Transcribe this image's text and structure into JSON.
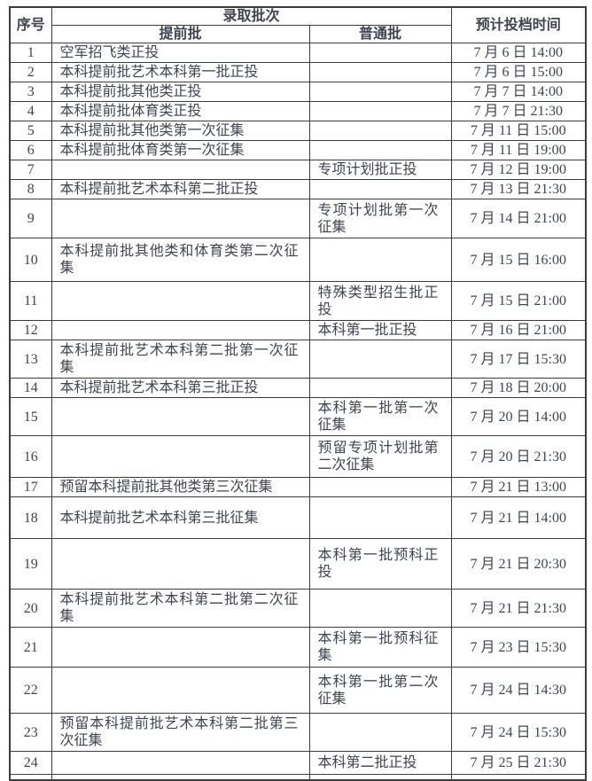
{
  "colors": {
    "text": "#3f4450",
    "border": "#3c3c3c",
    "background": "#ffffff"
  },
  "table": {
    "headers": {
      "seq": "序号",
      "batch_group": "录取批次",
      "early": "提前批",
      "general": "普通批",
      "time": "预计投档时间"
    },
    "rows": [
      {
        "seq": "1",
        "early": "空军招飞类正投",
        "general": "",
        "time": "7 月 6 日 14:00"
      },
      {
        "seq": "2",
        "early": "本科提前批艺术本科第一批正投",
        "general": "",
        "time": "7 月 6 日 15:00"
      },
      {
        "seq": "3",
        "early": "本科提前批其他类正投",
        "general": "",
        "time": "7 月 7 日 14:00"
      },
      {
        "seq": "4",
        "early": "本科提前批体育类正投",
        "general": "",
        "time": "7 月 7 日 21:30"
      },
      {
        "seq": "5",
        "early": "本科提前批其他类第一次征集",
        "general": "",
        "time": "7 月 11 日 15:00"
      },
      {
        "seq": "6",
        "early": "本科提前批体育类第一次征集",
        "general": "",
        "time": "7 月 11 日 19:00"
      },
      {
        "seq": "7",
        "early": "",
        "general": "专项计划批正投",
        "time": "7 月 12 日 19:00"
      },
      {
        "seq": "8",
        "early": "本科提前批艺术本科第二批正投",
        "general": "",
        "time": "7 月 13 日 21:30"
      },
      {
        "seq": "9",
        "early": "",
        "general": "专项计划批第一次征集",
        "time": "7 月 14 日 21:00"
      },
      {
        "seq": "10",
        "early": "本科提前批其他类和体育类第二次征集",
        "general": "",
        "time": "7 月 15 日 16:00"
      },
      {
        "seq": "11",
        "early": "",
        "general": "特殊类型招生批正投",
        "time": "7 月 15 日 21:00"
      },
      {
        "seq": "12",
        "early": "",
        "general": "本科第一批正投",
        "time": "7 月 16 日 21:00"
      },
      {
        "seq": "13",
        "early": "本科提前批艺术本科第二批第一次征集",
        "general": "",
        "time": "7 月 17 日 15:30"
      },
      {
        "seq": "14",
        "early": "本科提前批艺术本科第三批正投",
        "general": "",
        "time": "7 月 18 日 20:00"
      },
      {
        "seq": "15",
        "early": "",
        "general": "本科第一批第一次征集",
        "time": "7 月 20 日 14:00"
      },
      {
        "seq": "16",
        "early": "",
        "general": "预留专项计划批第二次征集",
        "time": "7 月 20 日 21:30"
      },
      {
        "seq": "17",
        "early": "预留本科提前批其他类第三次征集",
        "general": "",
        "time": "7 月 21 日 13:00"
      },
      {
        "seq": "18",
        "early": "本科提前批艺术本科第三批征集",
        "general": "",
        "time": "7 月 21 日 14:00"
      },
      {
        "seq": "19",
        "early": "",
        "general": "本科第一批预科正投",
        "time": "7 月 21 日 20:30"
      },
      {
        "seq": "20",
        "early": "本科提前批艺术本科第二批第二次征集",
        "general": "",
        "time": "7 月 21 日 21:30"
      },
      {
        "seq": "21",
        "early": "",
        "general": "本科第一批预科征集",
        "time": "7 月 23 日 15:30"
      },
      {
        "seq": "22",
        "early": "",
        "general": "本科第一批第二次征集",
        "time": "7 月 24 日 14:30"
      },
      {
        "seq": "23",
        "early": "预留本科提前批艺术本科第二批第三次征集",
        "general": "",
        "time": "7 月 24 日 15:30"
      },
      {
        "seq": "24",
        "early": "",
        "general": "本科第二批正投",
        "time": "7 月 25 日 21:30"
      }
    ]
  }
}
